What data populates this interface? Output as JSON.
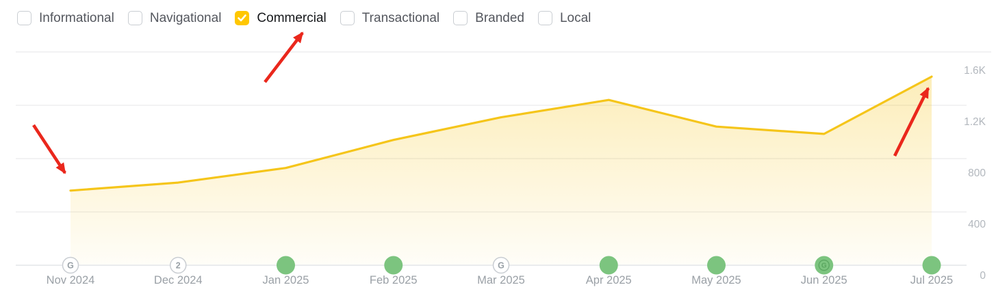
{
  "filters": {
    "items": [
      {
        "label": "Informational",
        "checked": false
      },
      {
        "label": "Navigational",
        "checked": false
      },
      {
        "label": "Commercial",
        "checked": true
      },
      {
        "label": "Transactional",
        "checked": false
      },
      {
        "label": "Branded",
        "checked": false
      },
      {
        "label": "Local",
        "checked": false
      }
    ],
    "checkbox_checked_bg": "#FFC702",
    "tick_color": "#FFFFFF"
  },
  "chart_data": {
    "type": "area",
    "title": "",
    "xlabel": "",
    "ylabel": "",
    "x": [
      "Nov 2024",
      "Dec 2024",
      "Jan 2025",
      "Feb 2025",
      "Mar 2025",
      "Apr 2025",
      "May 2025",
      "Jun 2025",
      "Jul 2025"
    ],
    "series": [
      {
        "name": "Commercial",
        "color": "#F5C51A",
        "values": [
          560,
          620,
          730,
          940,
          1110,
          1240,
          1040,
          985,
          1415
        ]
      }
    ],
    "ylim": [
      0,
      1600
    ],
    "yticks": [
      {
        "label": "1.6K",
        "value": 1600
      },
      {
        "label": "1.2K",
        "value": 1200
      },
      {
        "label": "800",
        "value": 800
      },
      {
        "label": "400",
        "value": 400
      },
      {
        "label": "0",
        "value": 0
      }
    ],
    "grid": true,
    "legend": "none",
    "x_markers": [
      {
        "month": "Nov 2024",
        "type": "google-update",
        "glyph": "G"
      },
      {
        "month": "Dec 2024",
        "type": "count-badge",
        "glyph": "2"
      },
      {
        "month": "Jan 2025",
        "type": "green-dot",
        "glyph": ""
      },
      {
        "month": "Feb 2025",
        "type": "green-dot",
        "glyph": ""
      },
      {
        "month": "Mar 2025",
        "type": "google-update",
        "glyph": "G"
      },
      {
        "month": "Apr 2025",
        "type": "green-dot",
        "glyph": ""
      },
      {
        "month": "May 2025",
        "type": "green-dot",
        "glyph": ""
      },
      {
        "month": "Jun 2025",
        "type": "green-dot-google",
        "glyph": "G"
      },
      {
        "month": "Jul 2025",
        "type": "green-dot",
        "glyph": ""
      }
    ],
    "colors": {
      "green_dot": "#7CC47F",
      "green_dot_glyph": "#55A15A",
      "badge_border": "#C9CDD2",
      "badge_text": "#98A0A6",
      "grid": "#EDEDEF",
      "axis": "#E4E6E9",
      "ytick_text": "#B2B7BD",
      "month_text": "#9AA0A6",
      "fill_top": "rgba(246,197,26,0.30)",
      "fill_bottom": "rgba(246,197,26,0.03)"
    }
  },
  "annotations": {
    "color": "#EA271C",
    "arrows": [
      {
        "from": [
          49,
          183
        ],
        "to": [
          95,
          253
        ],
        "target": "trend-start"
      },
      {
        "from": [
          387,
          120
        ],
        "to": [
          442,
          48
        ],
        "target": "commercial-filter"
      },
      {
        "from": [
          1307,
          228
        ],
        "to": [
          1356,
          129
        ],
        "target": "trend-end"
      }
    ]
  }
}
